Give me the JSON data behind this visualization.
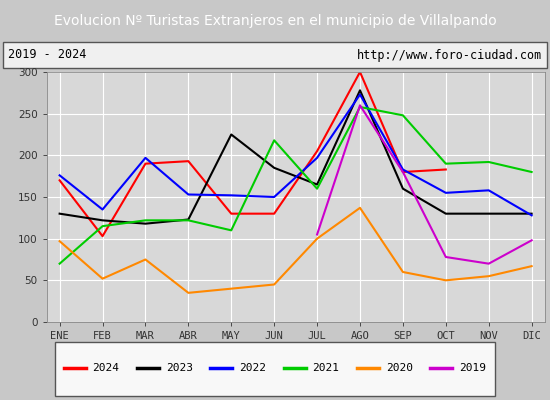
{
  "title": "Evolucion Nº Turistas Extranjeros en el municipio de Villalpando",
  "subtitle_left": "2019 - 2024",
  "subtitle_right": "http://www.foro-ciudad.com",
  "months": [
    "ENE",
    "FEB",
    "MAR",
    "ABR",
    "MAY",
    "JUN",
    "JUL",
    "AGO",
    "SEP",
    "OCT",
    "NOV",
    "DIC"
  ],
  "series_order": [
    "2024",
    "2023",
    "2022",
    "2021",
    "2020",
    "2019"
  ],
  "series": {
    "2024": {
      "color": "#ff0000",
      "data": [
        170,
        103,
        190,
        193,
        130,
        130,
        205,
        300,
        180,
        183,
        null,
        null
      ]
    },
    "2023": {
      "color": "#000000",
      "data": [
        130,
        122,
        118,
        123,
        225,
        185,
        165,
        278,
        160,
        130,
        130,
        130
      ]
    },
    "2022": {
      "color": "#0000ff",
      "data": [
        176,
        135,
        197,
        153,
        152,
        150,
        197,
        273,
        183,
        155,
        158,
        128
      ]
    },
    "2021": {
      "color": "#00cc00",
      "data": [
        70,
        115,
        122,
        122,
        110,
        218,
        160,
        258,
        248,
        190,
        192,
        180
      ]
    },
    "2020": {
      "color": "#ff8800",
      "data": [
        97,
        52,
        75,
        35,
        40,
        45,
        100,
        137,
        60,
        50,
        55,
        67
      ]
    },
    "2019": {
      "color": "#cc00cc",
      "data": [
        null,
        null,
        null,
        null,
        null,
        null,
        105,
        260,
        180,
        78,
        70,
        98
      ]
    }
  },
  "ylim": [
    0,
    300
  ],
  "yticks": [
    0,
    50,
    100,
    150,
    200,
    250,
    300
  ],
  "title_bg_color": "#4d78c8",
  "title_font_color": "#ffffff",
  "plot_bg_color": "#d8d8d8",
  "outer_bg_color": "#c8c8c8",
  "grid_color": "#ffffff",
  "title_fontsize": 10,
  "label_fontsize": 7.5,
  "legend_fontsize": 8
}
